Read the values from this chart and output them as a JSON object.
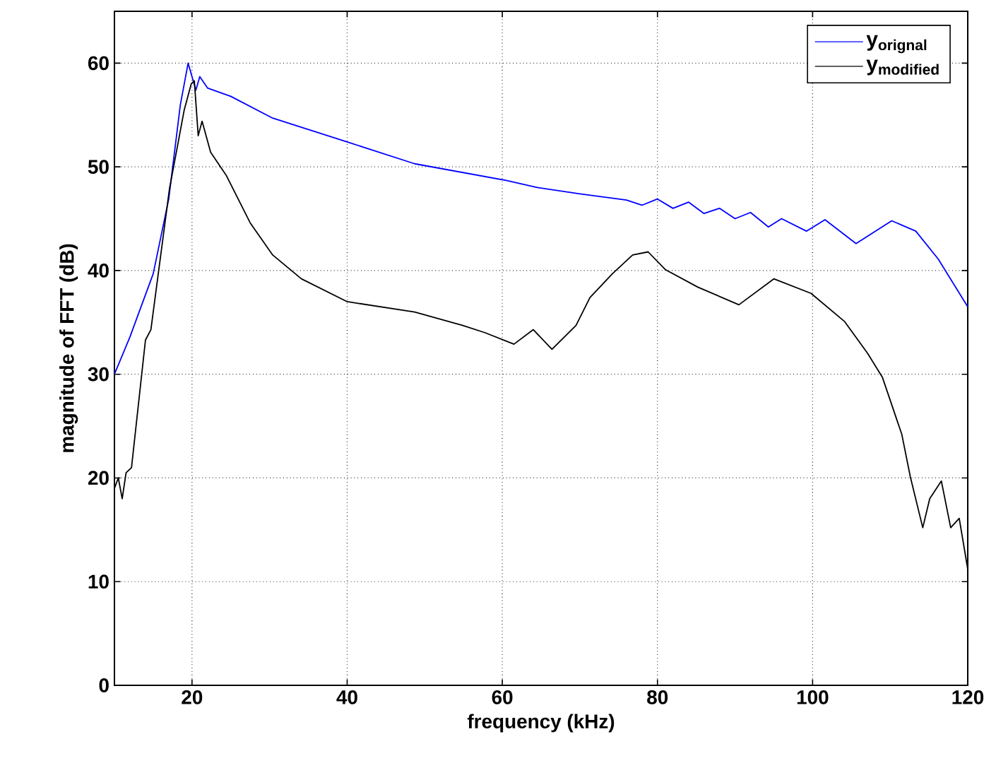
{
  "chart_data": {
    "type": "line",
    "xlabel": "frequency (kHz)",
    "ylabel": "magnitude of FFT (dB)",
    "xlim": [
      10,
      120
    ],
    "ylim": [
      0,
      65
    ],
    "xticks": [
      20,
      40,
      60,
      80,
      100,
      120
    ],
    "yticks": [
      0,
      10,
      20,
      30,
      40,
      50,
      60
    ],
    "grid": true,
    "legend": "top right",
    "marker": "none",
    "line_style": "solid",
    "series": [
      {
        "name": "y$_{orignal}$",
        "color": "#0000ff",
        "x": [
          10,
          12,
          15,
          17,
          18.5,
          19.5,
          20.5,
          21,
          22,
          25,
          30.4,
          40,
          48.7,
          60.4,
          64.6,
          70,
          76,
          78,
          80,
          82,
          84,
          86,
          88,
          90,
          92,
          94.3,
          96,
          99.2,
          101.6,
          105.6,
          110.2,
          113.3,
          116.2,
          120
        ],
        "values": [
          30,
          33.6,
          39.7,
          46.9,
          56,
          60,
          57.4,
          58.7,
          57.6,
          56.8,
          54.7,
          52.4,
          50.3,
          48.7,
          48,
          47.4,
          46.8,
          46.3,
          46.9,
          46,
          46.6,
          45.5,
          46,
          45,
          45.6,
          44.2,
          45,
          43.8,
          44.9,
          42.6,
          44.8,
          43.8,
          41.1,
          36.5
        ]
      },
      {
        "name": "y$_{modified}$",
        "color": "#000000",
        "x": [
          10,
          10.5,
          11,
          11.5,
          12.2,
          14,
          14.7,
          17.1,
          19,
          19.9,
          20.3,
          20.8,
          21.3,
          22.4,
          24.4,
          27.5,
          30.4,
          34.1,
          40,
          48.7,
          54.9,
          57.8,
          61.5,
          64,
          66.4,
          69.5,
          71.3,
          74.2,
          76.8,
          78.8,
          81,
          85.2,
          90.5,
          95,
          99.8,
          104.1,
          107.1,
          109,
          111.5,
          112.6,
          114.2,
          115.1,
          116.6,
          117.8,
          118.9,
          120
        ],
        "values": [
          19,
          20,
          18,
          20.5,
          21,
          33.3,
          34.3,
          47.9,
          55.5,
          58,
          58.3,
          53,
          54.4,
          51.4,
          49.2,
          44.6,
          41.5,
          39.2,
          37,
          36,
          34.7,
          34,
          32.9,
          34.3,
          32.4,
          34.7,
          37.4,
          39.7,
          41.5,
          41.8,
          40.1,
          38.4,
          36.7,
          39.2,
          37.8,
          35.1,
          32,
          29.7,
          24.2,
          20.1,
          15.2,
          18,
          19.7,
          15.2,
          16.1,
          11.2
        ]
      }
    ]
  }
}
